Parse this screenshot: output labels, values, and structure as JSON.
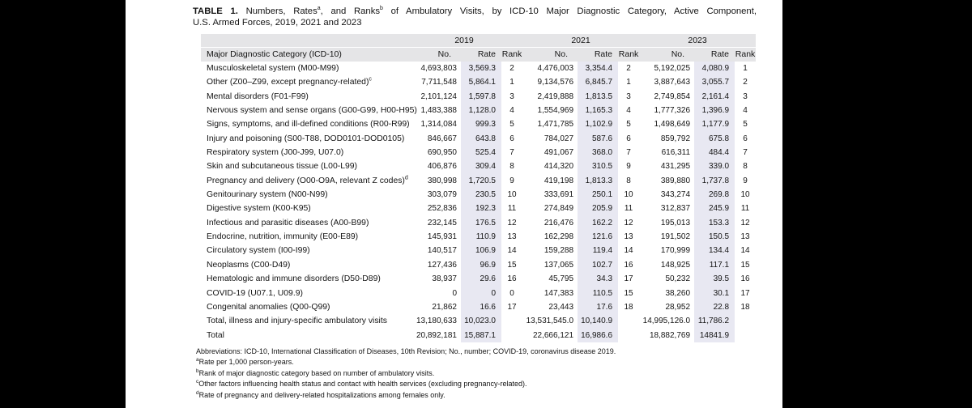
{
  "colors": {
    "page_bg": "#000000",
    "panel_bg": "#ffffff",
    "header_bg": "#e5e5e7",
    "rate_bg": "#e8e8f2",
    "text": "#141414"
  },
  "title": {
    "bold": "TABLE 1.",
    "seg1": " Numbers, Rates",
    "sup1": "a",
    "seg2": ", and Ranks",
    "sup2": "b",
    "seg3": " of Ambulatory Visits, by ICD-10 Major Diagnostic Category, Active Component,",
    "line2": "U.S. Armed Forces, 2019, 2021 and 2023"
  },
  "table": {
    "category_header": "Major Diagnostic Category (ICD-10)",
    "year_groups": [
      "2019",
      "2021",
      "2023"
    ],
    "sub_headers": [
      "No.",
      "Rate",
      "Rank"
    ],
    "rows": [
      {
        "category": "Musculoskeletal system (M00-M99)",
        "sup": "",
        "cells": [
          "4,693,803",
          "3,569.3",
          "2",
          "4,476,003",
          "3,354.4",
          "2",
          "5,192,025",
          "4,080.9",
          "1"
        ]
      },
      {
        "category": "Other (Z00–Z99, except pregnancy-related)",
        "sup": "c",
        "cells": [
          "7,711,548",
          "5,864.1",
          "1",
          "9,134,576",
          "6,845.7",
          "1",
          "3,887,643",
          "3,055.7",
          "2"
        ]
      },
      {
        "category": "Mental disorders (F01-F99)",
        "sup": "",
        "cells": [
          "2,101,124",
          "1,597.8",
          "3",
          "2,419,888",
          "1,813.5",
          "3",
          "2,749,854",
          "2,161.4",
          "3"
        ]
      },
      {
        "category": "Nervous system and sense organs (G00-G99, H00-H95)",
        "sup": "",
        "cells": [
          "1,483,388",
          "1,128.0",
          "4",
          "1,554,969",
          "1,165.3",
          "4",
          "1,777,326",
          "1,396.9",
          "4"
        ]
      },
      {
        "category": "Signs, symptoms, and ill-defined conditions (R00-R99)",
        "sup": "",
        "cells": [
          "1,314,084",
          "999.3",
          "5",
          "1,471,785",
          "1,102.9",
          "5",
          "1,498,649",
          "1,177.9",
          "5"
        ]
      },
      {
        "category": "Injury and poisoning (S00-T88, DOD0101-DOD0105)",
        "sup": "",
        "cells": [
          "846,667",
          "643.8",
          "6",
          "784,027",
          "587.6",
          "6",
          "859,792",
          "675.8",
          "6"
        ]
      },
      {
        "category": "Respiratory system (J00-J99, U07.0)",
        "sup": "",
        "cells": [
          "690,950",
          "525.4",
          "7",
          "491,067",
          "368.0",
          "7",
          "616,311",
          "484.4",
          "7"
        ]
      },
      {
        "category": "Skin and subcutaneous tissue (L00-L99)",
        "sup": "",
        "cells": [
          "406,876",
          "309.4",
          "8",
          "414,320",
          "310.5",
          "9",
          "431,295",
          "339.0",
          "8"
        ]
      },
      {
        "category": "Pregnancy and delivery (O00-O9A, relevant Z codes)",
        "sup": "d",
        "cells": [
          "380,998",
          "1,720.5",
          "9",
          "419,198",
          "1,813.3",
          "8",
          "389,880",
          "1,737.8",
          "9"
        ]
      },
      {
        "category": "Genitourinary system (N00-N99)",
        "sup": "",
        "cells": [
          "303,079",
          "230.5",
          "10",
          "333,691",
          "250.1",
          "10",
          "343,274",
          "269.8",
          "10"
        ]
      },
      {
        "category": "Digestive system (K00-K95)",
        "sup": "",
        "cells": [
          "252,836",
          "192.3",
          "11",
          "274,849",
          "205.9",
          "11",
          "312,837",
          "245.9",
          "11"
        ]
      },
      {
        "category": "Infectious and parasitic diseases (A00-B99)",
        "sup": "",
        "cells": [
          "232,145",
          "176.5",
          "12",
          "216,476",
          "162.2",
          "12",
          "195,013",
          "153.3",
          "12"
        ]
      },
      {
        "category": "Endocrine, nutrition, immunity (E00-E89)",
        "sup": "",
        "cells": [
          "145,931",
          "110.9",
          "13",
          "162,298",
          "121.6",
          "13",
          "191,502",
          "150.5",
          "13"
        ]
      },
      {
        "category": "Circulatory system (I00-I99)",
        "sup": "",
        "cells": [
          "140,517",
          "106.9",
          "14",
          "159,288",
          "119.4",
          "14",
          "170,999",
          "134.4",
          "14"
        ]
      },
      {
        "category": "Neoplasms (C00-D49)",
        "sup": "",
        "cells": [
          "127,436",
          "96.9",
          "15",
          "137,065",
          "102.7",
          "16",
          "148,925",
          "117.1",
          "15"
        ]
      },
      {
        "category": "Hematologic and immune disorders (D50-D89)",
        "sup": "",
        "cells": [
          "38,937",
          "29.6",
          "16",
          "45,795",
          "34.3",
          "17",
          "50,232",
          "39.5",
          "16"
        ]
      },
      {
        "category": "COVID-19 (U07.1, U09.9)",
        "sup": "",
        "cells": [
          "0",
          "0",
          "0",
          "147,383",
          "110.5",
          "15",
          "38,260",
          "30.1",
          "17"
        ]
      },
      {
        "category": "Congenital anomalies (Q00-Q99)",
        "sup": "",
        "cells": [
          "21,862",
          "16.6",
          "17",
          "23,443",
          "17.6",
          "18",
          "28,952",
          "22.8",
          "18"
        ]
      },
      {
        "category": "Total, illness and injury-specific ambulatory visits",
        "sup": "",
        "cells": [
          "13,180,633",
          "10,023.0",
          "",
          "13,531,545.0",
          "10,140.9",
          "",
          "14,995,126.0",
          "11,786.2",
          ""
        ]
      },
      {
        "category": "Total",
        "sup": "",
        "cells": [
          "20,892,181",
          "15,887.1",
          "",
          "22,666,121",
          "16,986.6",
          "",
          "18,882,769",
          "14841.9",
          ""
        ]
      }
    ]
  },
  "footnotes": [
    {
      "sup": "",
      "text": "Abbreviations: ICD-10, International Classification of Diseases, 10th Revision; No., number; COVID-19, coronavirus disease 2019."
    },
    {
      "sup": "a",
      "text": "Rate per 1,000 person-years."
    },
    {
      "sup": "b",
      "text": "Rank of major diagnostic category based on number of ambulatory visits."
    },
    {
      "sup": "c",
      "text": "Other factors influencing health status and contact with health services (excluding pregnancy-related)."
    },
    {
      "sup": "d",
      "text": "Rate of pregnancy and delivery-related hospitalizations among females only."
    }
  ]
}
